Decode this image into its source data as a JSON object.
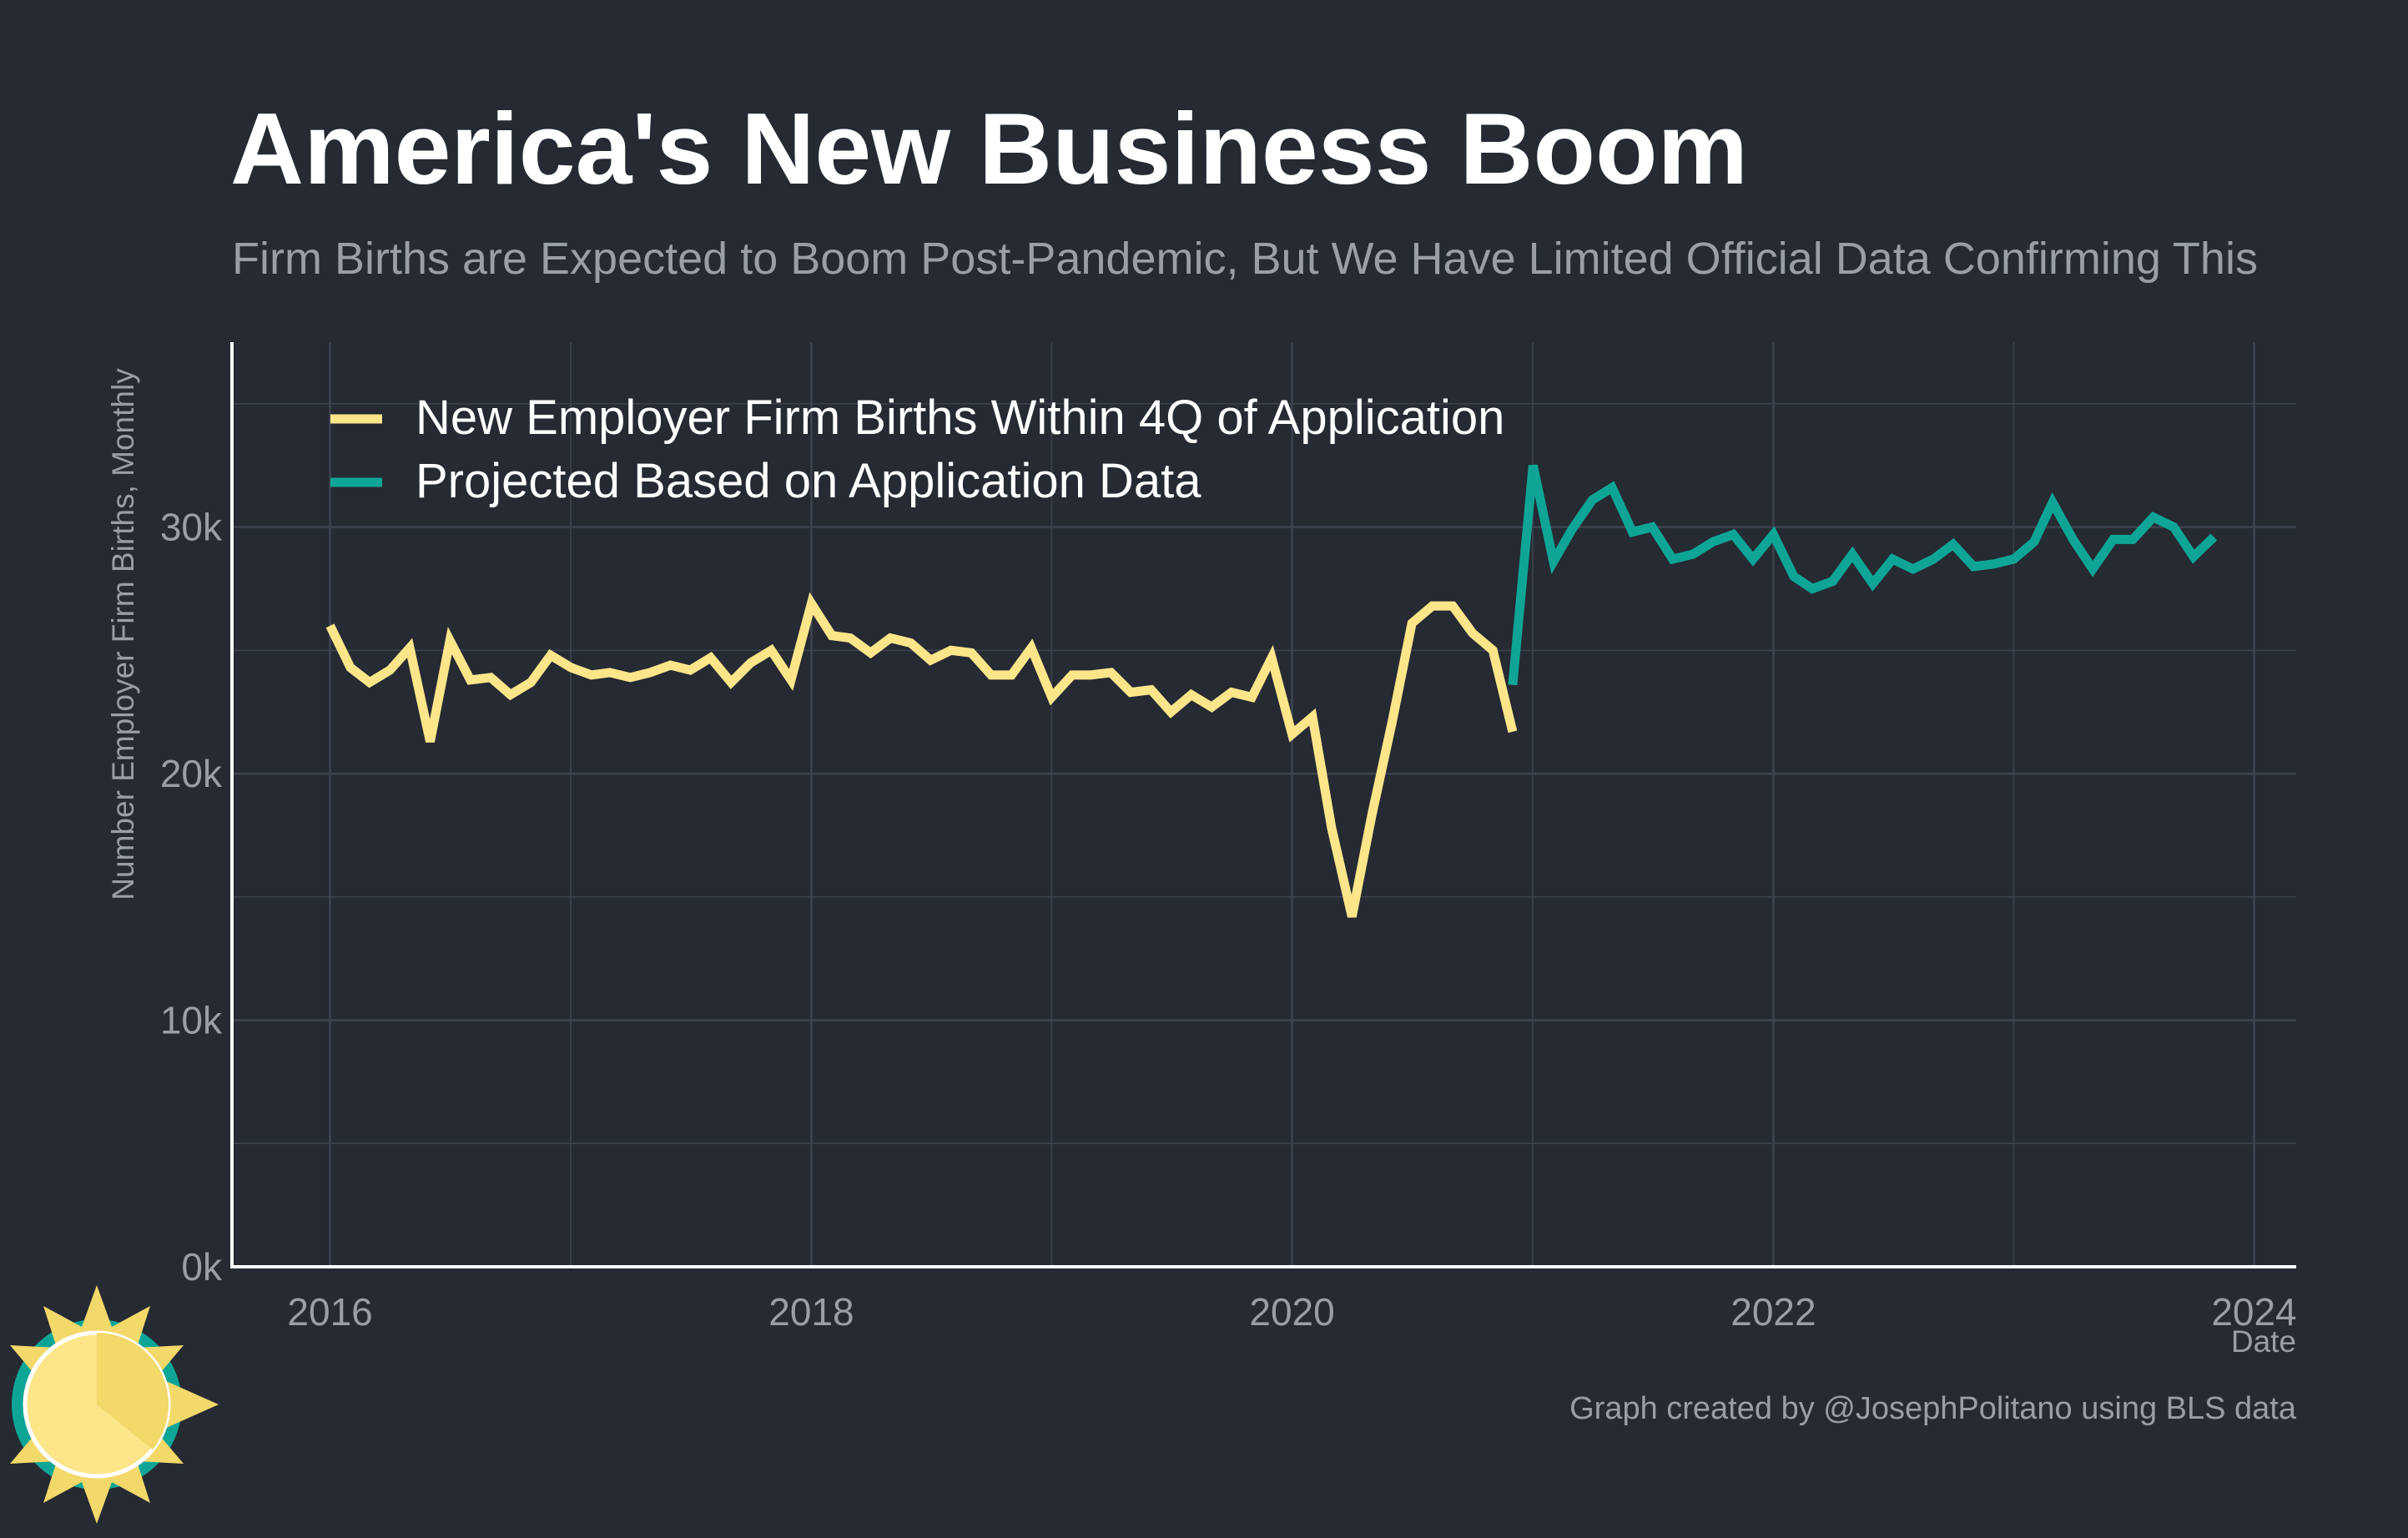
{
  "title": "America's New Business Boom",
  "subtitle": "Firm Births are Expected to Boom Post-Pandemic, But We Have Limited Official Data Confirming This",
  "caption": "Graph created by @JosephPolitano using BLS data",
  "colors": {
    "background": "#252a33",
    "actual": "#fde68a",
    "projected": "#0ea596",
    "grid": "#3e444f",
    "axis": "#ffffff",
    "tick_text": "#9a9ea6"
  },
  "logo_icon": "sun-logo-icon",
  "chart_data": {
    "type": "line",
    "title": "America's New Business Boom",
    "subtitle": "Firm Births are Expected to Boom Post-Pandemic, But We Have Limited Official Data Confirming This",
    "xlabel": "Date",
    "ylabel": "Number Employer Firm Births, Monthly",
    "xlim": [
      "2015-08-05",
      "2024-03-05"
    ],
    "ylim": [
      0,
      37500
    ],
    "x_ticks": [
      "2016-01-01",
      "2018-01-01",
      "2020-01-01",
      "2022-01-01",
      "2024-01-01"
    ],
    "x_tick_labels": [
      "2016",
      "2018",
      "2020",
      "2022",
      "2024"
    ],
    "y_ticks": [
      0,
      10000,
      20000,
      30000
    ],
    "y_tick_labels": [
      "0k",
      "10k",
      "20k",
      "30k"
    ],
    "grid": true,
    "legend_position": "top-left",
    "series": [
      {
        "name": "New Employer Firm Births Within 4Q of Application",
        "color": "#fde68a",
        "x": [
          "2016-01",
          "2016-02",
          "2016-03",
          "2016-04",
          "2016-05",
          "2016-06",
          "2016-07",
          "2016-08",
          "2016-09",
          "2016-10",
          "2016-11",
          "2016-12",
          "2017-01",
          "2017-02",
          "2017-03",
          "2017-04",
          "2017-05",
          "2017-06",
          "2017-07",
          "2017-08",
          "2017-09",
          "2017-10",
          "2017-11",
          "2017-12",
          "2018-01",
          "2018-02",
          "2018-03",
          "2018-04",
          "2018-05",
          "2018-06",
          "2018-07",
          "2018-08",
          "2018-09",
          "2018-10",
          "2018-11",
          "2018-12",
          "2019-01",
          "2019-02",
          "2019-03",
          "2019-04",
          "2019-05",
          "2019-06",
          "2019-07",
          "2019-08",
          "2019-09",
          "2019-10",
          "2019-11",
          "2019-12",
          "2020-01",
          "2020-02",
          "2020-03",
          "2020-04",
          "2020-05",
          "2020-06",
          "2020-07",
          "2020-08",
          "2020-09",
          "2020-10",
          "2020-11",
          "2020-12"
        ],
        "values": [
          26000,
          24300,
          23700,
          24200,
          25100,
          21300,
          25400,
          23800,
          23900,
          23200,
          23700,
          24800,
          24300,
          24000,
          24100,
          23900,
          24100,
          24400,
          24200,
          24700,
          23700,
          24500,
          25000,
          23800,
          26900,
          25600,
          25500,
          24900,
          25500,
          25300,
          24600,
          25000,
          24900,
          24000,
          24000,
          25100,
          23100,
          24000,
          24000,
          24100,
          23300,
          23400,
          22500,
          23200,
          22700,
          23300,
          23100,
          24700,
          21600,
          22300,
          17800,
          14200,
          18300,
          22100,
          26100,
          26800,
          26800,
          25700,
          25000,
          21700
        ]
      },
      {
        "name": "Projected Based on Application Data",
        "color": "#0ea596",
        "x": [
          "2020-12",
          "2021-01",
          "2021-02",
          "2021-03",
          "2021-04",
          "2021-05",
          "2021-06",
          "2021-07",
          "2021-08",
          "2021-09",
          "2021-10",
          "2021-11",
          "2021-12",
          "2022-01",
          "2022-02",
          "2022-03",
          "2022-04",
          "2022-05",
          "2022-06",
          "2022-07",
          "2022-08",
          "2022-09",
          "2022-10",
          "2022-11",
          "2022-12",
          "2023-01",
          "2023-02",
          "2023-03",
          "2023-04",
          "2023-05",
          "2023-06",
          "2023-07",
          "2023-08",
          "2023-09",
          "2023-10",
          "2023-11"
        ],
        "values": [
          23600,
          32500,
          28600,
          29900,
          31100,
          31600,
          29800,
          30000,
          28700,
          28900,
          29400,
          29700,
          28700,
          29700,
          28000,
          27500,
          27800,
          28900,
          27700,
          28700,
          28300,
          28700,
          29300,
          28400,
          28500,
          28700,
          29400,
          31000,
          29500,
          28300,
          29500,
          29500,
          30400,
          30000,
          28800,
          29600
        ]
      }
    ]
  }
}
